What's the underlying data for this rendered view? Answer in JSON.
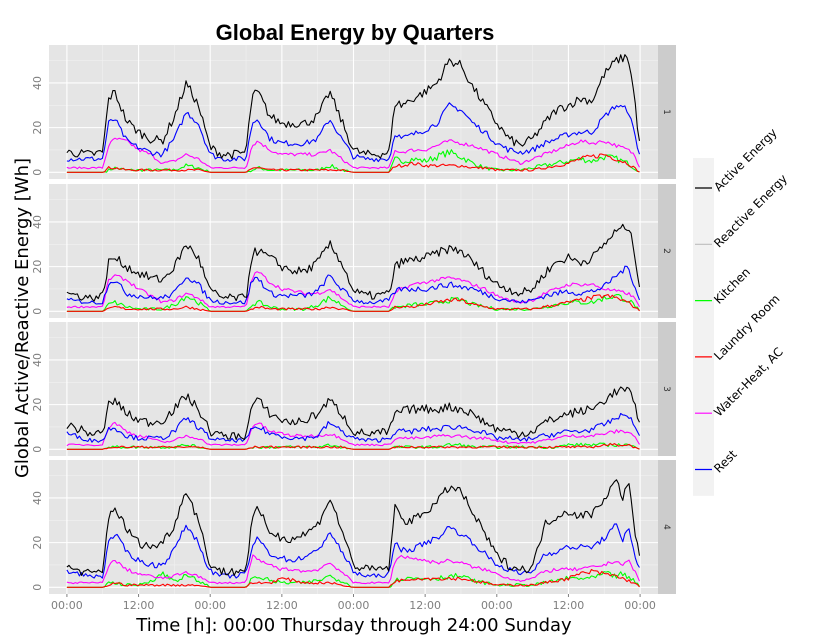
{
  "chart_data": {
    "type": "line",
    "title": "Global Energy by Quarters",
    "xlabel": "Time [h]: 00:00 Thursday through 24:00 Sunday",
    "ylabel": "Global Active/Reactive Energy [Wh]",
    "x_tick_labels": [
      "00:00",
      "12:00",
      "00:00",
      "12:00",
      "00:00",
      "12:00",
      "00:00",
      "12:00",
      "00:00"
    ],
    "x_tick_hours": [
      0,
      12,
      24,
      36,
      48,
      60,
      72,
      84,
      96
    ],
    "xlim_hours": [
      -3,
      99
    ],
    "y_ticks": [
      0,
      20,
      40
    ],
    "ylim": [
      -3,
      57
    ],
    "facets": [
      "1",
      "2",
      "3",
      "4"
    ],
    "legend_position": "right",
    "grid": true,
    "series": [
      {
        "name": "Active Energy",
        "color": "#000000"
      },
      {
        "name": "Reactive Energy",
        "color": "#bebebe"
      },
      {
        "name": "Kitchen",
        "color": "#00ff00"
      },
      {
        "name": "Laundry Room",
        "color": "#ff0000"
      },
      {
        "name": "Water-Heat, AC",
        "color": "#ff00ff"
      },
      {
        "name": "Rest",
        "color": "#0000ff"
      }
    ],
    "panels": [
      {
        "facet": "1",
        "x_hours": [
          0,
          4,
          6,
          7,
          8,
          10,
          12,
          14,
          16,
          18,
          20,
          22,
          24,
          26,
          28,
          30,
          31,
          32,
          34,
          36,
          38,
          40,
          42,
          44,
          46,
          48,
          50,
          52,
          54,
          55,
          56,
          58,
          60,
          62,
          64,
          66,
          68,
          70,
          72,
          74,
          76,
          78,
          80,
          82,
          84,
          86,
          88,
          90,
          92,
          94,
          95,
          96
        ],
        "active": [
          9,
          8,
          9,
          33,
          36,
          23,
          18,
          15,
          14,
          25,
          40,
          30,
          11,
          8,
          8,
          9,
          34,
          36,
          25,
          22,
          22,
          22,
          25,
          36,
          23,
          10,
          8,
          8,
          9,
          32,
          30,
          33,
          36,
          40,
          50,
          48,
          38,
          30,
          22,
          15,
          12,
          15,
          22,
          28,
          30,
          33,
          32,
          44,
          50,
          52,
          35,
          10
        ],
        "rest": [
          6,
          6,
          6,
          22,
          24,
          14,
          11,
          9,
          8,
          15,
          27,
          22,
          8,
          6,
          6,
          6,
          22,
          24,
          15,
          13,
          13,
          13,
          15,
          24,
          15,
          7,
          6,
          6,
          6,
          18,
          15,
          17,
          19,
          22,
          30,
          28,
          22,
          18,
          13,
          10,
          9,
          10,
          13,
          15,
          17,
          18,
          18,
          25,
          30,
          28,
          18,
          7
        ],
        "water": [
          2,
          2,
          2,
          12,
          15,
          14,
          10,
          8,
          4,
          5,
          8,
          6,
          2,
          2,
          2,
          2,
          12,
          14,
          10,
          8,
          8,
          8,
          8,
          10,
          6,
          2,
          2,
          2,
          2,
          10,
          9,
          10,
          10,
          12,
          14,
          13,
          12,
          10,
          8,
          6,
          4,
          6,
          8,
          10,
          12,
          14,
          13,
          14,
          12,
          10,
          8,
          2
        ],
        "kitchen": [
          0,
          0,
          0,
          1,
          2,
          1,
          1,
          1,
          1,
          1,
          3,
          2,
          0,
          0,
          0,
          0,
          1,
          2,
          1,
          1,
          1,
          1,
          1,
          3,
          1,
          0,
          0,
          0,
          0,
          6,
          5,
          6,
          5,
          7,
          9,
          7,
          4,
          2,
          1,
          1,
          1,
          2,
          3,
          4,
          5,
          6,
          5,
          7,
          6,
          4,
          2,
          0
        ],
        "laundry": [
          0,
          0,
          0,
          2,
          2,
          1,
          1,
          1,
          1,
          1,
          1,
          1,
          0,
          0,
          0,
          0,
          2,
          2,
          1,
          1,
          1,
          1,
          1,
          1,
          1,
          0,
          0,
          0,
          0,
          3,
          3,
          4,
          3,
          3,
          3,
          3,
          2,
          2,
          1,
          1,
          1,
          1,
          2,
          3,
          4,
          6,
          7,
          8,
          6,
          4,
          2,
          0
        ]
      },
      {
        "facet": "2",
        "x_hours": [
          0,
          4,
          6,
          7,
          8,
          10,
          12,
          14,
          16,
          18,
          20,
          22,
          24,
          26,
          28,
          30,
          31,
          32,
          34,
          36,
          38,
          40,
          42,
          44,
          46,
          48,
          50,
          52,
          54,
          55,
          56,
          58,
          60,
          62,
          64,
          66,
          68,
          70,
          72,
          74,
          76,
          78,
          80,
          82,
          84,
          86,
          88,
          90,
          92,
          94,
          95,
          96
        ],
        "active": [
          8,
          6,
          7,
          22,
          24,
          20,
          17,
          15,
          14,
          20,
          30,
          24,
          9,
          6,
          6,
          6,
          26,
          27,
          24,
          20,
          18,
          18,
          22,
          30,
          22,
          9,
          7,
          7,
          8,
          20,
          22,
          23,
          24,
          26,
          28,
          27,
          22,
          17,
          12,
          10,
          8,
          10,
          17,
          22,
          24,
          22,
          24,
          30,
          36,
          38,
          28,
          10
        ],
        "rest": [
          5,
          4,
          4,
          13,
          14,
          8,
          7,
          6,
          6,
          8,
          16,
          12,
          5,
          4,
          4,
          4,
          14,
          15,
          8,
          7,
          7,
          7,
          9,
          16,
          10,
          5,
          4,
          4,
          5,
          9,
          10,
          10,
          10,
          11,
          12,
          11,
          10,
          8,
          6,
          5,
          4,
          5,
          7,
          8,
          9,
          8,
          9,
          11,
          16,
          20,
          12,
          5
        ],
        "water": [
          2,
          2,
          2,
          14,
          16,
          14,
          10,
          7,
          4,
          5,
          8,
          6,
          2,
          2,
          2,
          2,
          15,
          18,
          13,
          10,
          9,
          8,
          8,
          10,
          6,
          2,
          2,
          2,
          2,
          8,
          10,
          12,
          13,
          14,
          15,
          14,
          12,
          10,
          7,
          5,
          4,
          5,
          8,
          10,
          12,
          12,
          12,
          10,
          9,
          8,
          6,
          2
        ],
        "kitchen": [
          0,
          0,
          0,
          3,
          4,
          2,
          1,
          1,
          1,
          3,
          7,
          4,
          0,
          0,
          0,
          0,
          3,
          4,
          2,
          1,
          1,
          1,
          3,
          6,
          3,
          0,
          0,
          0,
          0,
          2,
          2,
          3,
          3,
          4,
          5,
          5,
          3,
          2,
          1,
          1,
          1,
          1,
          2,
          3,
          4,
          4,
          4,
          6,
          7,
          5,
          3,
          0
        ],
        "laundry": [
          0,
          0,
          0,
          1,
          2,
          1,
          1,
          1,
          1,
          1,
          2,
          1,
          0,
          0,
          0,
          0,
          1,
          2,
          1,
          1,
          1,
          1,
          1,
          2,
          1,
          0,
          0,
          0,
          0,
          2,
          2,
          2,
          3,
          4,
          5,
          5,
          3,
          2,
          1,
          1,
          1,
          1,
          2,
          3,
          4,
          5,
          6,
          7,
          6,
          4,
          2,
          0
        ]
      },
      {
        "facet": "3",
        "x_hours": [
          0,
          4,
          6,
          7,
          8,
          10,
          12,
          14,
          16,
          18,
          20,
          22,
          24,
          26,
          28,
          30,
          31,
          32,
          34,
          36,
          38,
          40,
          42,
          44,
          46,
          48,
          50,
          52,
          54,
          55,
          56,
          58,
          60,
          62,
          64,
          66,
          68,
          70,
          72,
          74,
          76,
          78,
          80,
          82,
          84,
          86,
          88,
          90,
          92,
          94,
          95,
          96
        ],
        "active": [
          11,
          7,
          7,
          20,
          22,
          16,
          13,
          12,
          13,
          18,
          24,
          18,
          8,
          6,
          6,
          6,
          20,
          22,
          16,
          13,
          12,
          13,
          16,
          22,
          16,
          8,
          7,
          7,
          8,
          16,
          17,
          18,
          18,
          18,
          19,
          18,
          16,
          12,
          9,
          8,
          7,
          8,
          12,
          14,
          16,
          17,
          18,
          22,
          26,
          27,
          20,
          12
        ],
        "rest": [
          7,
          4,
          4,
          9,
          10,
          6,
          5,
          5,
          5,
          8,
          14,
          10,
          5,
          4,
          4,
          4,
          9,
          10,
          7,
          6,
          5,
          5,
          6,
          12,
          8,
          5,
          4,
          4,
          5,
          8,
          8,
          8,
          9,
          9,
          10,
          10,
          9,
          7,
          5,
          5,
          4,
          5,
          6,
          7,
          8,
          8,
          9,
          11,
          14,
          16,
          10,
          6
        ],
        "water": [
          2,
          2,
          2,
          10,
          12,
          8,
          6,
          5,
          3,
          4,
          6,
          5,
          2,
          2,
          2,
          2,
          10,
          12,
          8,
          7,
          6,
          6,
          6,
          7,
          5,
          2,
          2,
          2,
          2,
          5,
          5,
          5,
          5,
          6,
          6,
          6,
          5,
          5,
          4,
          3,
          3,
          3,
          4,
          5,
          6,
          6,
          6,
          7,
          8,
          8,
          6,
          2
        ],
        "kitchen": [
          0,
          0,
          0,
          1,
          1,
          1,
          1,
          1,
          1,
          1,
          2,
          1,
          0,
          0,
          0,
          0,
          1,
          1,
          1,
          1,
          1,
          1,
          1,
          2,
          1,
          0,
          0,
          0,
          0,
          1,
          1,
          1,
          1,
          1,
          2,
          2,
          1,
          1,
          1,
          1,
          1,
          1,
          1,
          1,
          2,
          2,
          2,
          2,
          2,
          2,
          1,
          0
        ],
        "laundry": [
          0,
          0,
          0,
          1,
          1,
          1,
          1,
          1,
          1,
          1,
          1,
          1,
          0,
          0,
          0,
          0,
          1,
          1,
          1,
          1,
          1,
          1,
          1,
          1,
          1,
          0,
          0,
          0,
          0,
          1,
          1,
          1,
          1,
          1,
          1,
          1,
          1,
          1,
          1,
          1,
          1,
          1,
          1,
          1,
          1,
          1,
          1,
          2,
          2,
          2,
          1,
          0
        ]
      },
      {
        "facet": "4",
        "x_hours": [
          0,
          4,
          6,
          7,
          8,
          10,
          12,
          14,
          16,
          18,
          20,
          22,
          24,
          26,
          28,
          30,
          31,
          32,
          34,
          36,
          38,
          40,
          42,
          44,
          46,
          48,
          50,
          52,
          54,
          55,
          56,
          58,
          60,
          62,
          64,
          66,
          68,
          70,
          72,
          74,
          76,
          78,
          80,
          82,
          84,
          86,
          88,
          90,
          92,
          93,
          94,
          95,
          96
        ],
        "active": [
          9,
          6,
          7,
          32,
          36,
          26,
          20,
          18,
          20,
          28,
          44,
          30,
          10,
          7,
          7,
          8,
          30,
          35,
          25,
          22,
          22,
          24,
          28,
          40,
          26,
          10,
          8,
          8,
          9,
          38,
          30,
          30,
          34,
          38,
          45,
          43,
          33,
          24,
          14,
          10,
          8,
          9,
          28,
          32,
          34,
          32,
          33,
          40,
          48,
          40,
          48,
          28,
          12
        ],
        "rest": [
          7,
          5,
          5,
          20,
          24,
          16,
          12,
          10,
          10,
          17,
          28,
          20,
          7,
          5,
          5,
          6,
          18,
          22,
          15,
          13,
          12,
          14,
          16,
          25,
          16,
          7,
          5,
          5,
          6,
          20,
          17,
          17,
          20,
          22,
          27,
          24,
          20,
          15,
          10,
          8,
          6,
          7,
          15,
          16,
          18,
          18,
          18,
          22,
          28,
          20,
          28,
          16,
          7
        ],
        "water": [
          2,
          2,
          2,
          10,
          12,
          8,
          6,
          5,
          4,
          5,
          7,
          5,
          2,
          2,
          2,
          2,
          14,
          12,
          10,
          8,
          8,
          7,
          8,
          11,
          7,
          2,
          2,
          2,
          2,
          12,
          14,
          13,
          12,
          11,
          12,
          11,
          9,
          8,
          6,
          4,
          3,
          4,
          7,
          8,
          8,
          8,
          9,
          10,
          12,
          10,
          12,
          8,
          2
        ],
        "kitchen": [
          0,
          0,
          0,
          2,
          2,
          1,
          1,
          3,
          6,
          3,
          5,
          3,
          0,
          0,
          0,
          0,
          4,
          5,
          3,
          2,
          2,
          2,
          3,
          5,
          3,
          0,
          0,
          0,
          0,
          3,
          4,
          4,
          4,
          4,
          5,
          5,
          3,
          2,
          1,
          1,
          1,
          1,
          2,
          3,
          4,
          4,
          4,
          6,
          5,
          6,
          4,
          3,
          0
        ],
        "laundry": [
          0,
          0,
          0,
          1,
          2,
          1,
          1,
          1,
          1,
          1,
          1,
          1,
          0,
          0,
          0,
          0,
          2,
          2,
          2,
          4,
          3,
          2,
          2,
          2,
          1,
          0,
          0,
          0,
          0,
          3,
          3,
          4,
          4,
          4,
          4,
          4,
          3,
          2,
          1,
          1,
          1,
          1,
          2,
          3,
          4,
          6,
          7,
          6,
          5,
          4,
          3,
          2,
          0
        ]
      }
    ]
  }
}
